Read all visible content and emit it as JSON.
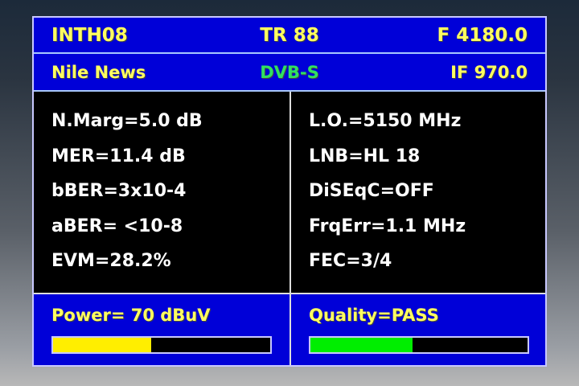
{
  "header": {
    "satellite": "INTH08",
    "transponder": "TR 88",
    "frequency": "F 4180.0"
  },
  "subheader": {
    "channel": "Nile News",
    "standard": "DVB-S",
    "if_freq": "IF 970.0"
  },
  "left_params": [
    "N.Marg=5.0 dB",
    "MER=11.4 dB",
    "bBER=3x10-4",
    "aBER= <10-8",
    "EVM=28.2%"
  ],
  "right_params": [
    "L.O.=5150 MHz",
    "LNB=HL 18",
    "DiSEqC=OFF",
    "FrqErr=1.1 MHz",
    "FEC=3/4"
  ],
  "power": {
    "label": "Power= 70 dBuV",
    "level_percent": 45,
    "color": "#ffee00"
  },
  "quality": {
    "label": "Quality=PASS",
    "level_percent": 47,
    "color": "#00ee00"
  },
  "colors": {
    "panel_blue": "#0000d8",
    "text_yellow": "#ffff60",
    "standard_green": "#30e060"
  }
}
